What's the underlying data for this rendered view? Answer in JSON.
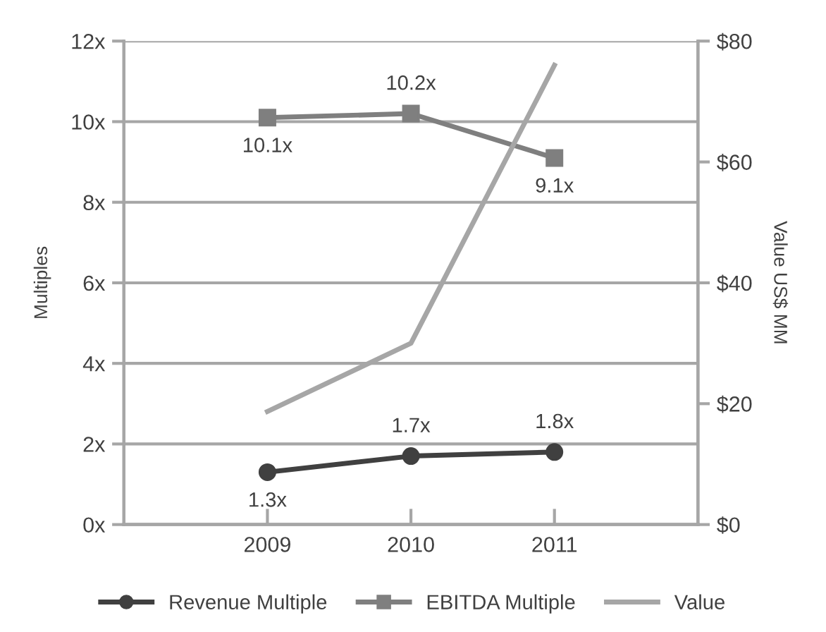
{
  "chart_data": {
    "type": "line",
    "categories": [
      "2009",
      "2010",
      "2011"
    ],
    "ylabel": "Multiples",
    "y2label": "Value US$ MM",
    "ylim": [
      0,
      12
    ],
    "yticks": [
      {
        "value": 0,
        "label": "0x"
      },
      {
        "value": 2,
        "label": "2x"
      },
      {
        "value": 4,
        "label": "4x"
      },
      {
        "value": 6,
        "label": "6x"
      },
      {
        "value": 8,
        "label": "8x"
      },
      {
        "value": 10,
        "label": "10x"
      },
      {
        "value": 12,
        "label": "12x"
      }
    ],
    "y2lim": [
      0,
      80
    ],
    "y2ticks": [
      {
        "value": 0,
        "label": "$0"
      },
      {
        "value": 20,
        "label": "$20"
      },
      {
        "value": 40,
        "label": "$40"
      },
      {
        "value": 60,
        "label": "$60"
      },
      {
        "value": 80,
        "label": "$80"
      }
    ],
    "grid": "y",
    "legend": "bottom",
    "series": [
      {
        "name": "Revenue Multiple",
        "color": "#404040",
        "marker": "circle",
        "values": [
          1.3,
          1.7,
          1.8
        ],
        "value_labels": [
          "1.3x",
          "1.7x",
          "1.8x"
        ]
      },
      {
        "name": "EBITDA Multiple",
        "color": "#7f7f7f",
        "marker": "square",
        "values": [
          10.1,
          10.2,
          9.1
        ],
        "value_labels": [
          "10.1x",
          "10.2x",
          "9.1x"
        ]
      },
      {
        "name": "Value",
        "color": "#a6a6a6",
        "marker": "none",
        "axis": "y2",
        "values": [
          18.7,
          30,
          76
        ]
      }
    ]
  }
}
